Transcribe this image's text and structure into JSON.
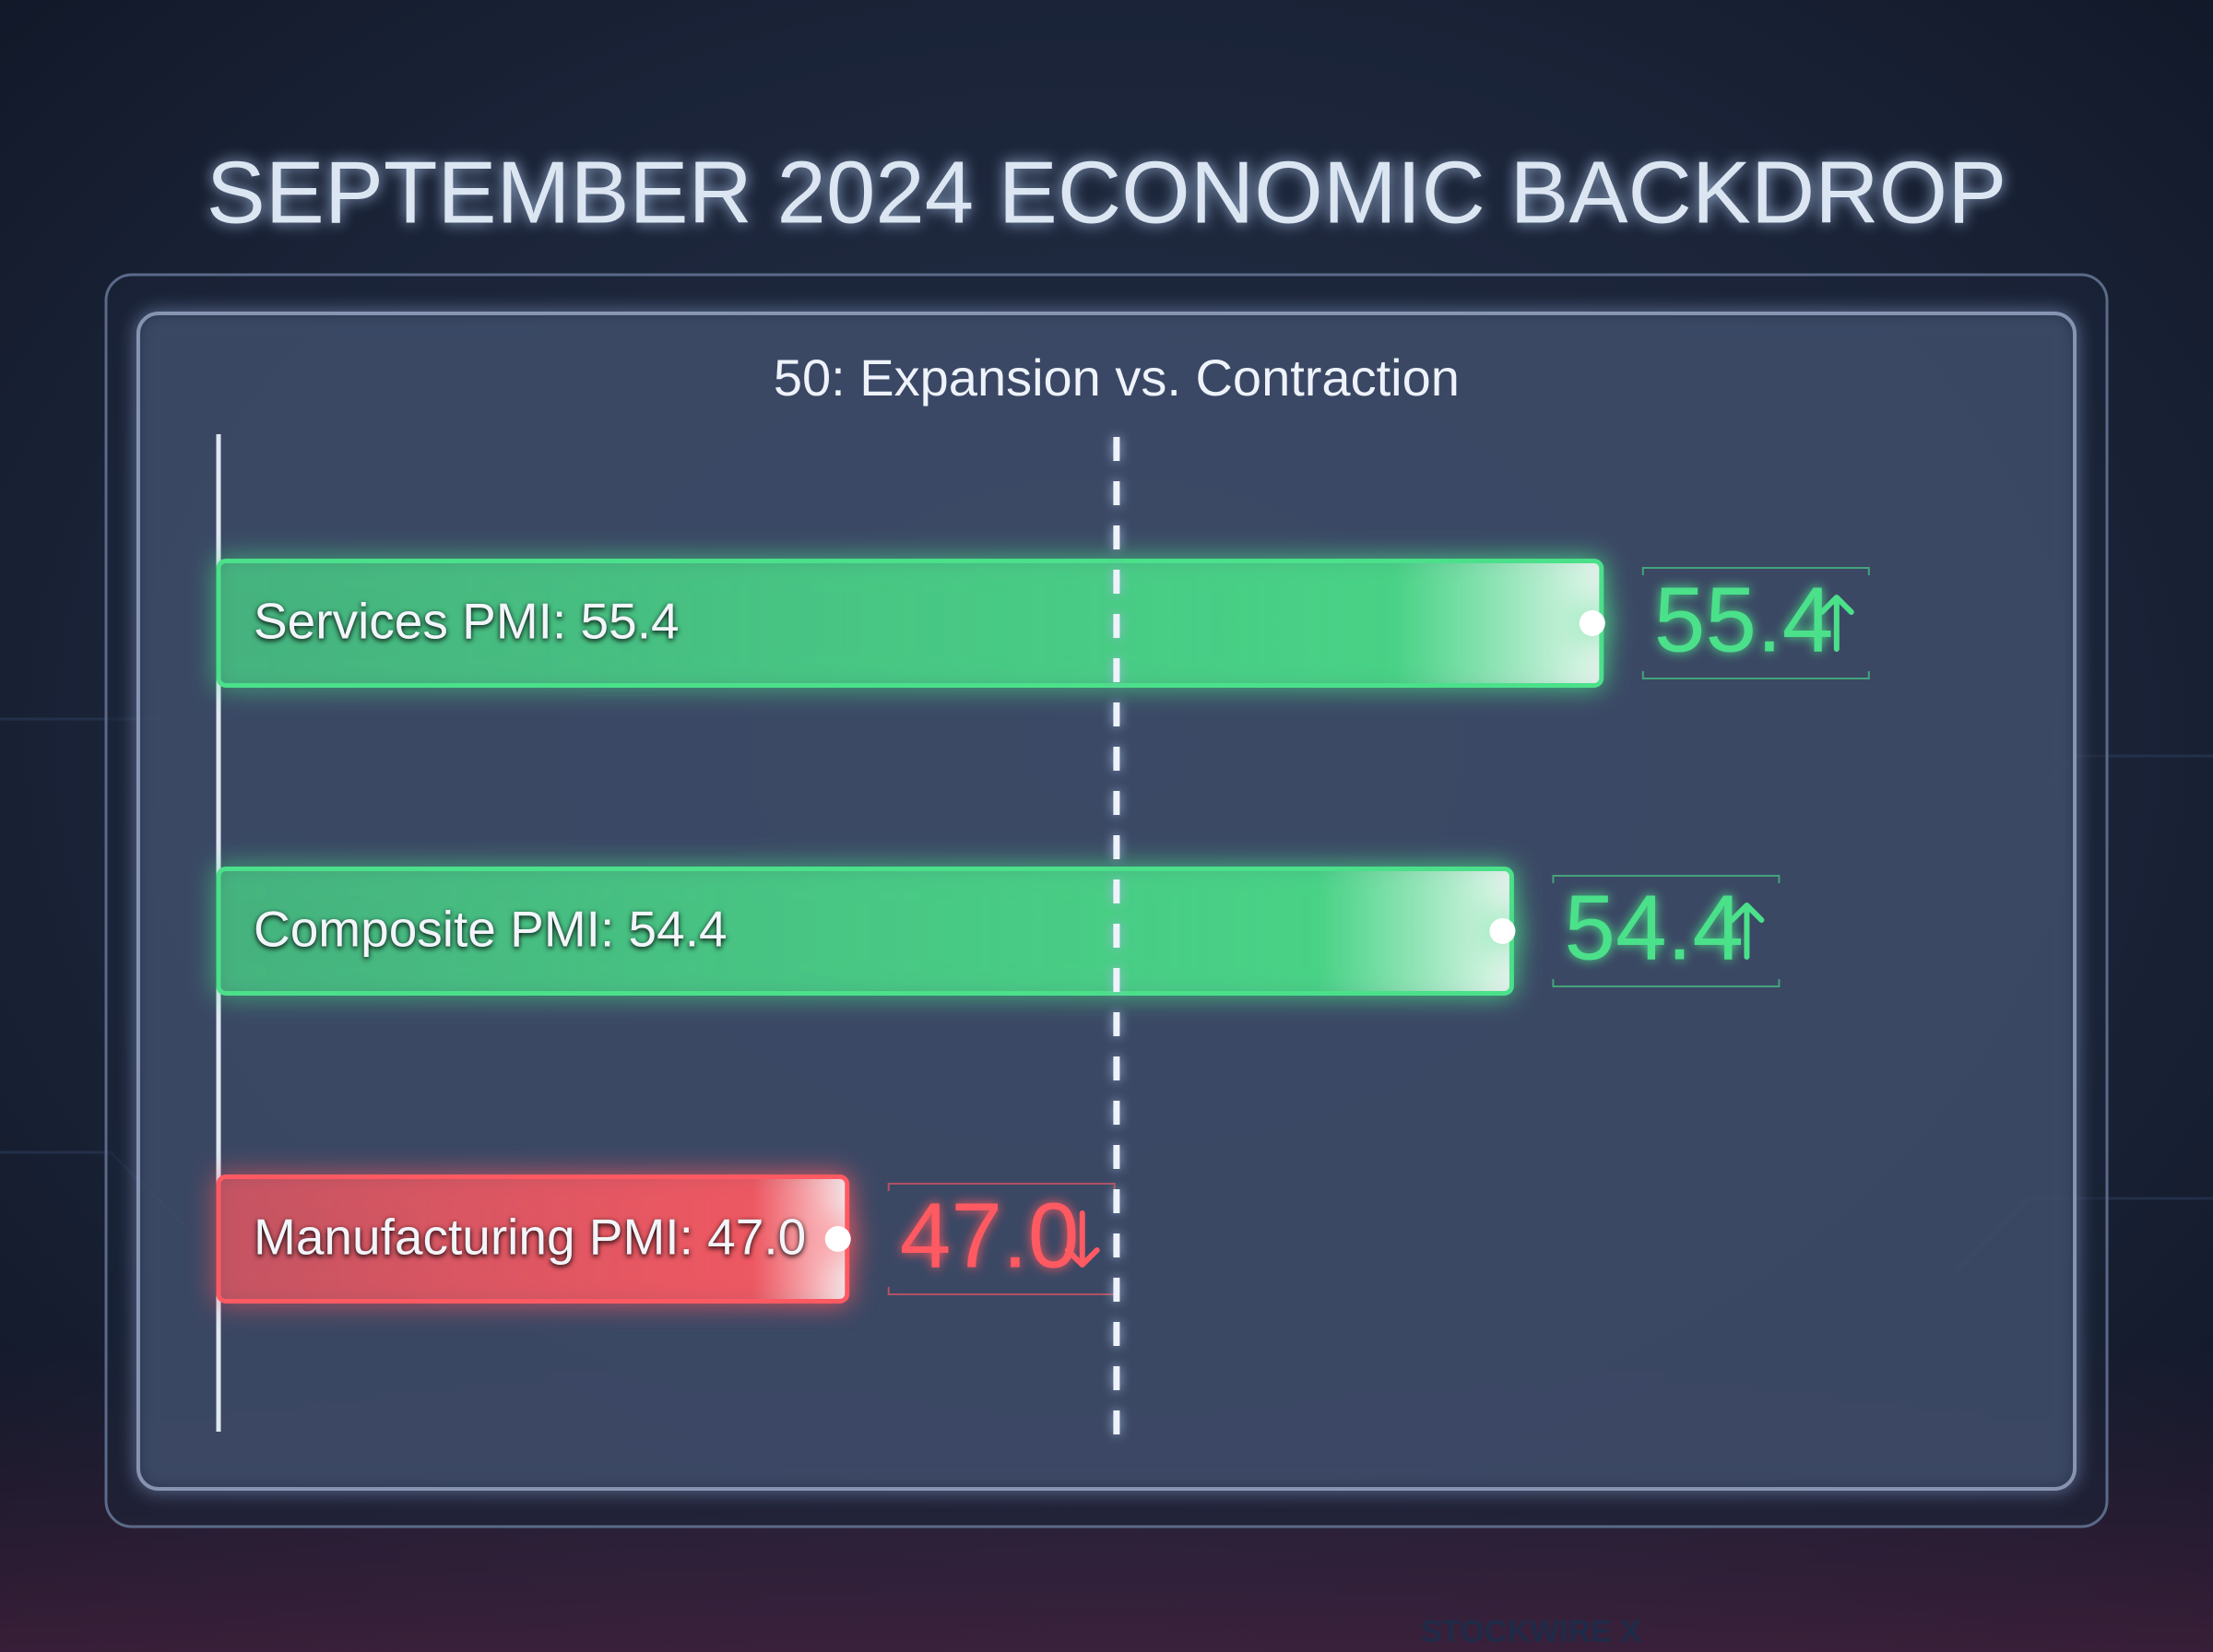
{
  "chart_data": {
    "type": "bar",
    "orientation": "horizontal",
    "title": "SEPTEMBER 2024 ECONOMIC BACKDROP",
    "categories": [
      "Services PMI: 55.4",
      "Composite PMI: 54.4",
      "Manufacturing PMI: 47.0"
    ],
    "values": [
      55.4,
      54.4,
      47.0
    ],
    "value_labels": [
      "55.4",
      "54.4",
      "47.0"
    ],
    "colors": [
      "#4be08a",
      "#4be08a",
      "#ff5a62"
    ],
    "xlim": [
      40,
      58
    ],
    "reference_line": {
      "value": 50,
      "label": "50: Expansion vs. Contraction"
    },
    "watermark": "STOCKWIRE X"
  }
}
